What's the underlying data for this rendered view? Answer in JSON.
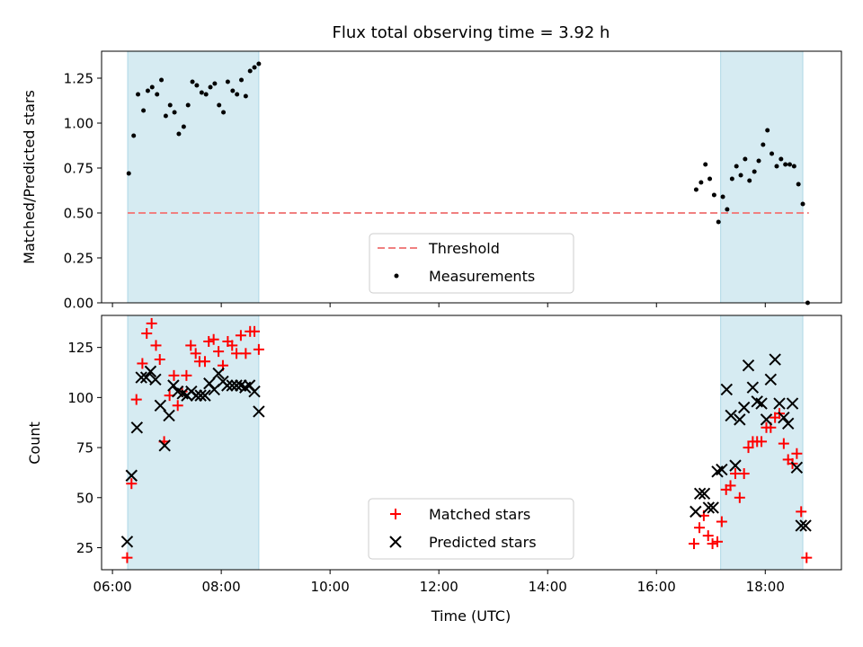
{
  "title": "Flux total observing time = 3.92 h",
  "xlabel": "Time (UTC)",
  "x_ticks": [
    {
      "value": 6,
      "label": "06:00"
    },
    {
      "value": 8,
      "label": "08:00"
    },
    {
      "value": 10,
      "label": "10:00"
    },
    {
      "value": 12,
      "label": "12:00"
    },
    {
      "value": 14,
      "label": "14:00"
    },
    {
      "value": 16,
      "label": "16:00"
    },
    {
      "value": 18,
      "label": "18:00"
    }
  ],
  "shaded_intervals": [
    [
      6.28,
      8.69
    ],
    [
      17.18,
      18.69
    ]
  ],
  "colors": {
    "shade": "#add8e6",
    "threshold": "#f08080",
    "measurement": "#000000",
    "matched": "#ff0000",
    "predicted": "#000000"
  },
  "chart_data": [
    {
      "type": "scatter",
      "panel": "top",
      "ylabel": "Matched/Predicted stars",
      "xlim": [
        5.8,
        19.4
      ],
      "ylim": [
        0,
        1.4
      ],
      "y_ticks": [
        {
          "value": 0.0,
          "label": "0.00"
        },
        {
          "value": 0.25,
          "label": "0.25"
        },
        {
          "value": 0.5,
          "label": "0.50"
        },
        {
          "value": 0.75,
          "label": "0.75"
        },
        {
          "value": 1.0,
          "label": "1.00"
        },
        {
          "value": 1.25,
          "label": "1.25"
        }
      ],
      "legend_position": "lower center",
      "series": [
        {
          "name": "Threshold",
          "kind": "dashed-line",
          "x": [
            6.28,
            18.8
          ],
          "y": [
            0.5,
            0.5
          ]
        },
        {
          "name": "Measurements",
          "kind": "points",
          "x": [
            6.3,
            6.39,
            6.47,
            6.57,
            6.65,
            6.73,
            6.82,
            6.9,
            6.98,
            7.06,
            7.14,
            7.22,
            7.31,
            7.39,
            7.47,
            7.55,
            7.64,
            7.72,
            7.8,
            7.88,
            7.96,
            8.04,
            8.12,
            8.21,
            8.29,
            8.37,
            8.45,
            8.53,
            8.61,
            8.69,
            16.73,
            16.82,
            16.9,
            16.98,
            17.06,
            17.14,
            17.22,
            17.3,
            17.39,
            17.47,
            17.55,
            17.63,
            17.71,
            17.8,
            17.88,
            17.96,
            18.04,
            18.12,
            18.21,
            18.29,
            18.37,
            18.45,
            18.53,
            18.61,
            18.69,
            18.78
          ],
          "y": [
            0.72,
            0.93,
            1.16,
            1.07,
            1.18,
            1.2,
            1.16,
            1.24,
            1.04,
            1.1,
            1.06,
            0.94,
            0.98,
            1.1,
            1.23,
            1.21,
            1.17,
            1.16,
            1.2,
            1.22,
            1.1,
            1.06,
            1.23,
            1.18,
            1.16,
            1.24,
            1.15,
            1.29,
            1.31,
            1.33,
            0.63,
            0.67,
            0.77,
            0.69,
            0.6,
            0.45,
            0.59,
            0.52,
            0.69,
            0.76,
            0.71,
            0.8,
            0.68,
            0.73,
            0.79,
            0.88,
            0.96,
            0.83,
            0.76,
            0.8,
            0.77,
            0.77,
            0.76,
            0.66,
            0.55,
            0.0
          ]
        }
      ]
    },
    {
      "type": "scatter",
      "panel": "bottom",
      "ylabel": "Count",
      "xlabel": "Time (UTC)",
      "xlim": [
        5.8,
        19.4
      ],
      "ylim": [
        14,
        141
      ],
      "y_ticks": [
        {
          "value": 25,
          "label": "25"
        },
        {
          "value": 50,
          "label": "50"
        },
        {
          "value": 75,
          "label": "75"
        },
        {
          "value": 100,
          "label": "100"
        },
        {
          "value": 125,
          "label": "125"
        }
      ],
      "legend_position": "lower center",
      "series": [
        {
          "name": "Matched stars",
          "marker": "plus",
          "x": [
            6.27,
            6.35,
            6.44,
            6.55,
            6.63,
            6.72,
            6.8,
            6.87,
            6.95,
            7.05,
            7.13,
            7.2,
            7.28,
            7.36,
            7.44,
            7.53,
            7.6,
            7.7,
            7.77,
            7.86,
            7.95,
            8.03,
            8.12,
            8.2,
            8.28,
            8.36,
            8.45,
            8.53,
            8.61,
            8.69,
            16.69,
            16.79,
            16.87,
            16.95,
            17.03,
            17.12,
            17.2,
            17.28,
            17.36,
            17.45,
            17.53,
            17.61,
            17.69,
            17.77,
            17.85,
            17.93,
            18.02,
            18.1,
            18.18,
            18.26,
            18.34,
            18.42,
            18.5,
            18.58,
            18.66,
            18.76
          ],
          "y": [
            20,
            57,
            99,
            117,
            132,
            137,
            126,
            119,
            78,
            101,
            111,
            96,
            103,
            111,
            126,
            122,
            118,
            118,
            128,
            129,
            123,
            116,
            128,
            126,
            122,
            131,
            122,
            133,
            133,
            124,
            27,
            35,
            41,
            31,
            27,
            28,
            38,
            54,
            56,
            62,
            50,
            62,
            75,
            78,
            78,
            78,
            85,
            85,
            90,
            92,
            77,
            69,
            67,
            72,
            43,
            20
          ]
        },
        {
          "name": "Predicted stars",
          "marker": "x",
          "x": [
            6.27,
            6.35,
            6.45,
            6.53,
            6.62,
            6.7,
            6.79,
            6.88,
            6.96,
            7.04,
            7.12,
            7.2,
            7.29,
            7.37,
            7.45,
            7.54,
            7.62,
            7.7,
            7.78,
            7.87,
            7.95,
            8.03,
            8.11,
            8.2,
            8.28,
            8.36,
            8.44,
            8.52,
            8.61,
            8.69,
            16.72,
            16.8,
            16.88,
            16.96,
            17.04,
            17.12,
            17.2,
            17.29,
            17.37,
            17.45,
            17.53,
            17.61,
            17.69,
            17.77,
            17.85,
            17.93,
            18.02,
            18.1,
            18.18,
            18.26,
            18.34,
            18.42,
            18.5,
            18.58,
            18.66,
            18.74
          ],
          "y": [
            28,
            61,
            85,
            110,
            110,
            113,
            109,
            96,
            76,
            91,
            106,
            103,
            102,
            101,
            103,
            101,
            101,
            101,
            107,
            104,
            112,
            108,
            106,
            106,
            106,
            106,
            105,
            106,
            103,
            93,
            43,
            52,
            52,
            45,
            45,
            63,
            64,
            104,
            91,
            66,
            89,
            95,
            116,
            105,
            98,
            97,
            89,
            109,
            119,
            97,
            90,
            87,
            97,
            65,
            36,
            36
          ]
        }
      ]
    }
  ]
}
